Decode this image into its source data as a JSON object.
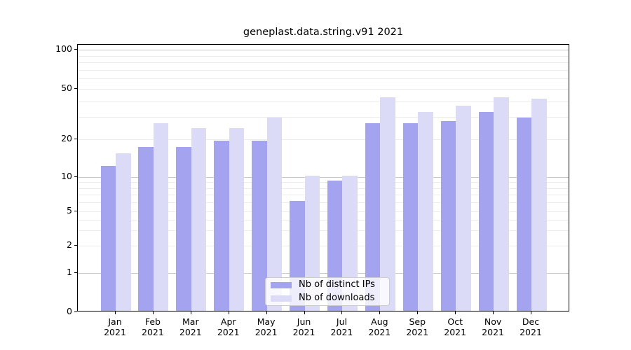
{
  "chart_data": {
    "type": "bar",
    "title": "geneplast.data.string.v91 2021",
    "categories": [
      "Jan",
      "Feb",
      "Mar",
      "Apr",
      "May",
      "Jun",
      "Jul",
      "Aug",
      "Sep",
      "Oct",
      "Nov",
      "Dec"
    ],
    "x_tick_year": "2021",
    "series": [
      {
        "name": "Nb of distinct IPs",
        "color": "#a3a3f0",
        "values": [
          12,
          17,
          17,
          19,
          19,
          6,
          9,
          26,
          26,
          27,
          32,
          29
        ]
      },
      {
        "name": "Nb of downloads",
        "color": "#dbdbf8",
        "values": [
          15,
          26,
          24,
          24,
          29,
          10,
          10,
          42,
          32,
          36,
          42,
          41
        ]
      }
    ],
    "xlabel": "",
    "ylabel": "",
    "ylim": [
      0,
      100
    ],
    "y_scale": "symlog-like",
    "y_ticks": [
      0,
      1,
      2,
      5,
      10,
      20,
      50,
      100
    ],
    "y_major_gridlines": [
      1,
      10,
      100
    ],
    "y_minor_gridlines": [
      2,
      3,
      4,
      5,
      6,
      7,
      8,
      9,
      20,
      30,
      40,
      50,
      60,
      70,
      80,
      90
    ],
    "grid": true,
    "legend_position": "lower center",
    "background_color": "#ffffff",
    "spine_color": "#000000",
    "major_grid_color": "#c9c9c9",
    "minor_grid_color": "#ececec"
  }
}
